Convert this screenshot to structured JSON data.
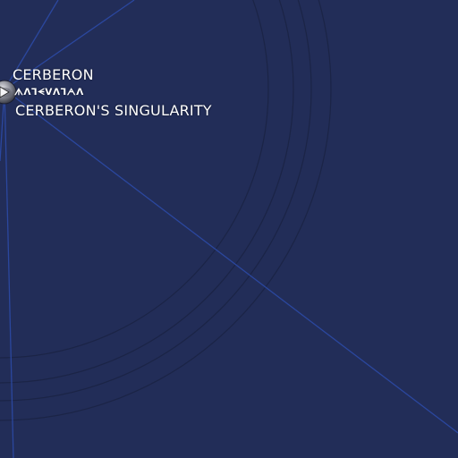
{
  "map": {
    "background_color": "#222d58",
    "ring_color": "#1c2548",
    "hyperlane_color": "#2a47a0"
  },
  "planet": {
    "name": "CERBERON",
    "aurebesh_name": "ᗑᐱᒣᗕᐯᐱᒣᗅᐱ",
    "region": "CERBERON'S SINGULARITY",
    "icon": "planet-globe-icon"
  }
}
